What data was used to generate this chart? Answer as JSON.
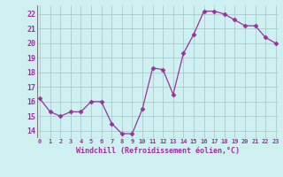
{
  "x": [
    0,
    1,
    2,
    3,
    4,
    5,
    6,
    7,
    8,
    9,
    10,
    11,
    12,
    13,
    14,
    15,
    16,
    17,
    18,
    19,
    20,
    21,
    22,
    23
  ],
  "y": [
    16.2,
    15.3,
    15.0,
    15.3,
    15.3,
    16.0,
    16.0,
    14.5,
    13.8,
    13.8,
    15.5,
    18.3,
    18.2,
    16.5,
    19.3,
    20.6,
    22.2,
    22.2,
    22.0,
    21.6,
    21.2,
    21.2,
    20.4,
    20.0
  ],
  "line_color": "#993399",
  "marker": "D",
  "marker_size": 2.5,
  "bg_color": "#cff0f0",
  "grid_color": "#aacccc",
  "tick_color": "#993399",
  "label_color": "#993399",
  "xlabel": "Windchill (Refroidissement éolien,°C)",
  "ylim": [
    13.5,
    22.6
  ],
  "yticks": [
    14,
    15,
    16,
    17,
    18,
    19,
    20,
    21,
    22
  ],
  "xticks": [
    0,
    1,
    2,
    3,
    4,
    5,
    6,
    7,
    8,
    9,
    10,
    11,
    12,
    13,
    14,
    15,
    16,
    17,
    18,
    19,
    20,
    21,
    22,
    23
  ],
  "xlim": [
    -0.3,
    23.3
  ]
}
